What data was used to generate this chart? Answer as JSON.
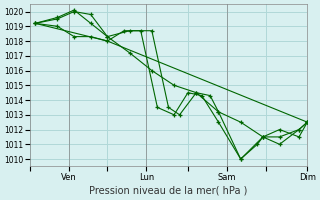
{
  "title": "Pression niveau de la mer( hPa )",
  "bg_color": "#d8f0f0",
  "grid_color": "#b0d8d8",
  "line_color": "#006600",
  "ylim": [
    1009.5,
    1020.5
  ],
  "yticks": [
    1010,
    1011,
    1012,
    1013,
    1014,
    1015,
    1016,
    1017,
    1018,
    1019,
    1020
  ],
  "xtick_labels": [
    "",
    "Ven",
    "",
    "Lun",
    "",
    "Sam",
    "",
    "Dim"
  ],
  "xtick_positions": [
    0.0,
    0.14,
    0.28,
    0.42,
    0.57,
    0.71,
    0.85,
    1.0
  ],
  "day_vlines": [
    0.14,
    0.42,
    0.71,
    1.0
  ],
  "series": [
    {
      "x": [
        0.02,
        0.1,
        0.16,
        0.22,
        0.28,
        0.36,
        0.44,
        0.52,
        0.6,
        0.68,
        0.76,
        0.84,
        0.9,
        0.97,
        1.0
      ],
      "y": [
        1019.2,
        1019.5,
        1020.0,
        1019.8,
        1018.3,
        1017.2,
        1016.0,
        1015.0,
        1014.5,
        1013.2,
        1012.5,
        1011.5,
        1011.0,
        1012.0,
        1012.5
      ],
      "has_markers": true
    },
    {
      "x": [
        0.02,
        0.1,
        0.16,
        0.22,
        0.28,
        0.36,
        0.44,
        0.5,
        0.54,
        0.6,
        0.65,
        0.68,
        0.76,
        0.82,
        0.84,
        0.9,
        0.97,
        1.0
      ],
      "y": [
        1019.2,
        1019.6,
        1020.1,
        1019.2,
        1018.3,
        1018.7,
        1018.7,
        1013.5,
        1013.0,
        1014.5,
        1014.3,
        1013.2,
        1010.0,
        1011.0,
        1011.5,
        1012.0,
        1011.5,
        1012.5
      ],
      "has_markers": true
    },
    {
      "x": [
        0.02,
        0.1,
        0.16,
        0.22,
        0.28,
        0.34,
        0.4,
        0.46,
        0.52,
        0.57,
        0.62,
        0.68,
        0.76,
        0.84,
        0.9,
        0.97,
        1.0
      ],
      "y": [
        1019.2,
        1019.0,
        1018.3,
        1018.3,
        1018.0,
        1018.7,
        1018.7,
        1013.5,
        1013.0,
        1014.5,
        1014.3,
        1012.5,
        1010.0,
        1011.5,
        1011.5,
        1012.0,
        1012.5
      ],
      "has_markers": true
    },
    {
      "x": [
        0.02,
        0.28,
        1.0
      ],
      "y": [
        1019.2,
        1018.0,
        1012.5
      ],
      "has_markers": false
    }
  ]
}
